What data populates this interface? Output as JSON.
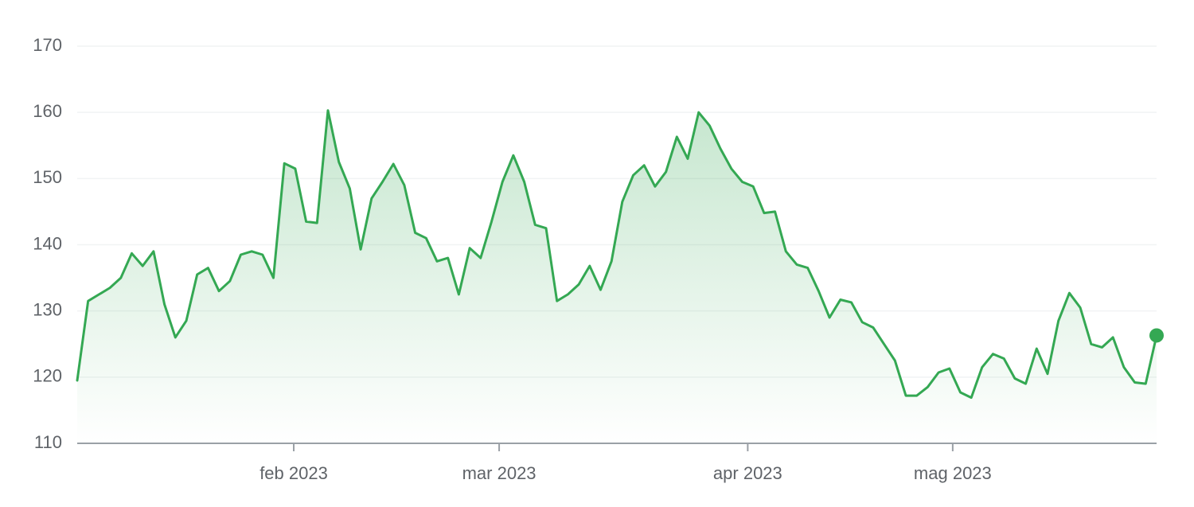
{
  "chart_data": {
    "type": "line",
    "color": "#34a853",
    "grid": true,
    "ylim": [
      110,
      170
    ],
    "yticks": [
      110,
      120,
      130,
      140,
      150,
      160,
      170
    ],
    "xlim": [
      0,
      99
    ],
    "xticks": [
      {
        "value": 19.86,
        "label": "feb 2023"
      },
      {
        "value": 38.7,
        "label": "mar 2023"
      },
      {
        "value": 61.5,
        "label": "apr 2023"
      },
      {
        "value": 80.3,
        "label": "mag 2023"
      }
    ],
    "values": [
      119.5,
      131.5,
      132.5,
      133.5,
      135,
      138.7,
      136.8,
      139,
      131,
      126,
      128.5,
      135.5,
      136.5,
      133,
      134.5,
      138.5,
      139,
      138.5,
      135,
      152.3,
      151.5,
      143.5,
      143.3,
      160.3,
      152.5,
      148.5,
      139.3,
      147,
      149.5,
      152.2,
      149,
      141.8,
      141,
      137.5,
      138,
      132.5,
      139.5,
      138,
      143.5,
      149.5,
      153.5,
      149.5,
      143,
      142.5,
      131.5,
      132.5,
      134,
      136.8,
      133.2,
      137.5,
      146.5,
      150.5,
      152,
      148.8,
      151,
      156.3,
      153,
      160,
      158,
      154.5,
      151.5,
      149.5,
      148.8,
      144.8,
      145,
      139,
      137,
      136.5,
      133,
      129,
      131.7,
      131.3,
      128.3,
      127.5,
      125,
      122.5,
      117.2,
      117.2,
      118.5,
      120.7,
      121.3,
      117.7,
      116.9,
      121.5,
      123.5,
      122.8,
      119.8,
      119,
      124.3,
      120.5,
      128.5,
      132.7,
      130.5,
      125,
      124.5,
      126,
      121.5,
      119.2,
      119,
      126.3
    ]
  }
}
